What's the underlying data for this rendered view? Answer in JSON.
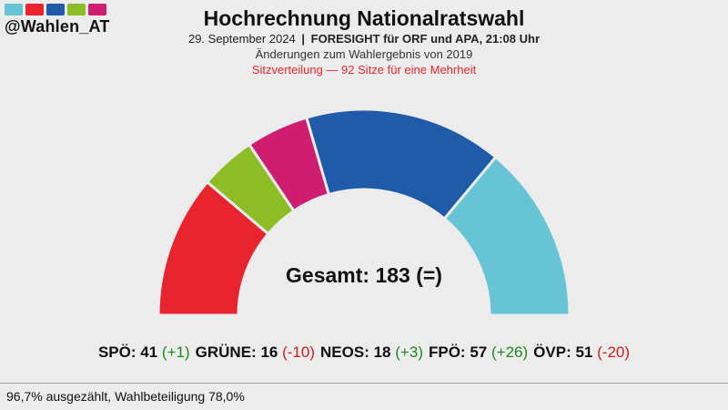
{
  "brand": {
    "swatch_colors": [
      "#66c4d4",
      "#e8252f",
      "#1f5ba8",
      "#8cbd24",
      "#cf1d72"
    ],
    "handle": "@Wahlen_AT"
  },
  "header": {
    "title": "Hochrechnung Nationalratswahl",
    "date": "29. September 2024",
    "separator": "|",
    "source": "FORESIGHT für ORF und APA, 21:08 Uhr",
    "changes_note": "Änderungen zum Wahlergebnis von 2019",
    "majority_note": "Sitzverteilung — 92 Sitze für eine Mehrheit"
  },
  "chart_data": {
    "type": "pie",
    "shape": "semicircle",
    "total_label": "Gesamt: 183 (=)",
    "total_seats": 183,
    "series": [
      {
        "name": "SPÖ",
        "value": 41,
        "change": "+1",
        "color": "#e8252f"
      },
      {
        "name": "GRÜNE",
        "value": 16,
        "change": "-10",
        "color": "#8cbd24"
      },
      {
        "name": "NEOS",
        "value": 18,
        "change": "+3",
        "color": "#cf1d72"
      },
      {
        "name": "FPÖ",
        "value": 57,
        "change": "+26",
        "color": "#1f5ba8"
      },
      {
        "name": "ÖVP",
        "value": 51,
        "change": "-20",
        "color": "#66c4d4"
      }
    ]
  },
  "footer": {
    "status": "96,7% ausgezählt, Wahlbeteiligung 78,0%"
  }
}
